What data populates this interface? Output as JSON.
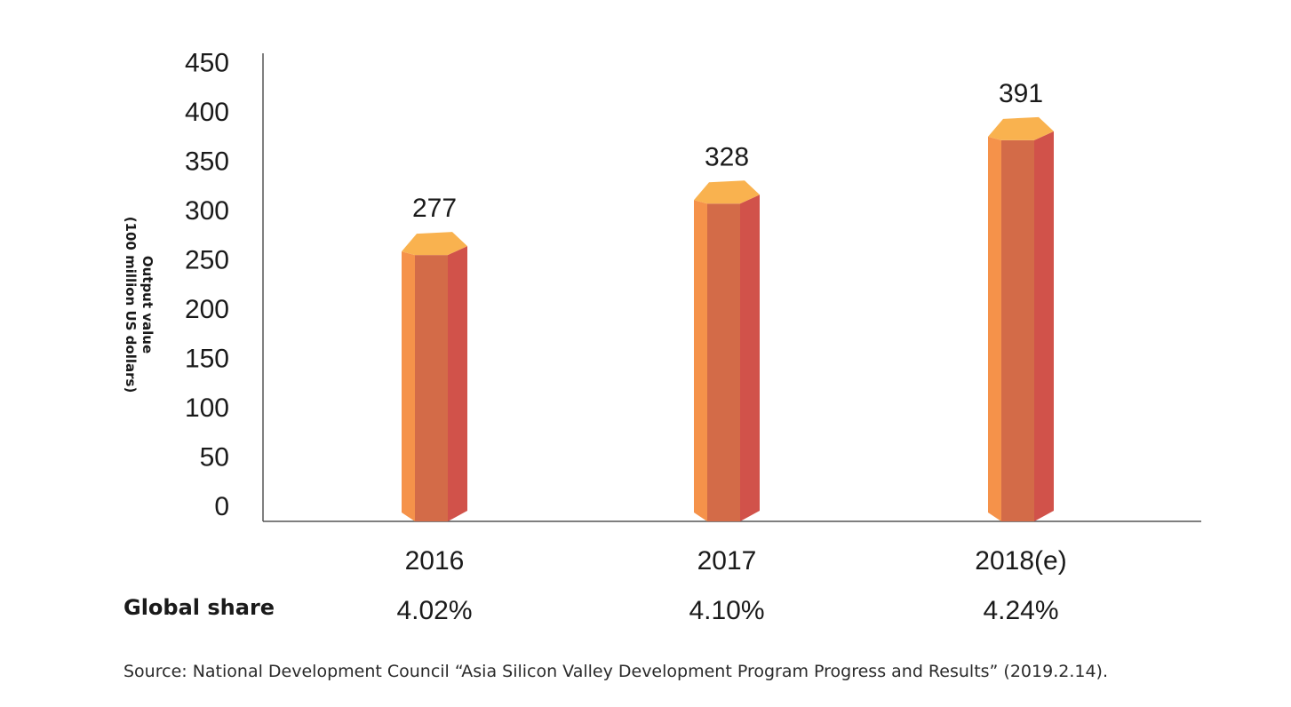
{
  "chart_data": {
    "type": "bar",
    "title": "",
    "xlabel": "",
    "ylabel": "Output value (100 million US dollars)",
    "ylabel_lines": [
      "Output value",
      "(100 million US dollars)"
    ],
    "categories": [
      "2016",
      "2017",
      "2018(e)"
    ],
    "values": [
      277,
      328,
      391
    ],
    "value_labels": [
      "277",
      "328",
      "391"
    ],
    "ylim": [
      0,
      450
    ],
    "yticks": [
      0,
      50,
      100,
      150,
      200,
      250,
      300,
      350,
      400,
      450
    ],
    "grid": false,
    "global_share": {
      "label": "Global share",
      "values": [
        "4.02%",
        "4.10%",
        "4.24%"
      ]
    },
    "colors": {
      "front_left": "#f5924a",
      "front_center": "#d36b48",
      "front_right": "#d1524a",
      "top": "#f9b24f",
      "axis": "#555555"
    }
  },
  "source": "Source: National Development Council “Asia Silicon Valley Development Program Progress and Results” (2019.2.14)."
}
